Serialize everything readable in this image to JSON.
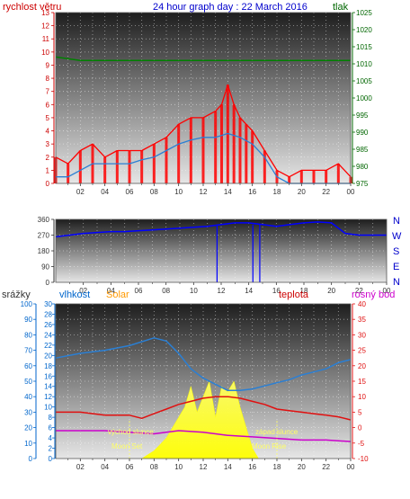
{
  "top_chart": {
    "title": "24 hour graph day : 22 March 2016",
    "left_label": "rychlost větru",
    "right_label": "tlak"
  },
  "mid_chart": {
    "compass": [
      "N",
      "W",
      "S",
      "E",
      "N"
    ]
  },
  "bottom_chart": {
    "labels": {
      "srazky": "srážky",
      "vlhkost": "vlhkost",
      "solar": "Solar",
      "teplota": "teplota",
      "rosny_bod": "rosný bod"
    },
    "annotations": {
      "sunrise": "východ slunce",
      "sunset": "západ slunce",
      "moonset": "Moon Set",
      "moonrise": "Moon Rise"
    }
  },
  "colors": {
    "wind_gust": "#ff0000",
    "wind_avg": "#2a7fd4",
    "pressure": "#008000",
    "direction": "#0000ff",
    "humidity": "#2a7fd4",
    "temperature": "#e01010",
    "dewpoint": "#cc00cc",
    "solar": "#ffff33",
    "left_axis_red": "#cc0000",
    "left_axis_blue": "#0066cc",
    "right_axis_green": "#006600",
    "right_axis_magenta": "#cc00cc"
  },
  "chart_data": [
    {
      "type": "line",
      "title": "24 hour graph day : 22 March 2016",
      "x_ticks": [
        "02",
        "04",
        "06",
        "08",
        "10",
        "12",
        "14",
        "16",
        "18",
        "20",
        "22",
        "00"
      ],
      "ylabel": "rychlost větru",
      "ylim": [
        0,
        13
      ],
      "y_ticks": [
        0,
        1,
        2,
        3,
        4,
        5,
        6,
        7,
        8,
        9,
        10,
        11,
        12,
        13
      ],
      "y2label": "tlak",
      "y2lim": [
        975,
        1025
      ],
      "y2_ticks": [
        975,
        980,
        985,
        990,
        995,
        1000,
        1005,
        1010,
        1015,
        1020,
        1025
      ],
      "grid": true,
      "series": [
        {
          "name": "rychlost větru",
          "role": "gust",
          "x": [
            0,
            1,
            2,
            3,
            4,
            5,
            6,
            7,
            8,
            9,
            10,
            11,
            12,
            13,
            13.5,
            14,
            14.5,
            15,
            15.5,
            16,
            17,
            18,
            19,
            20,
            21,
            22,
            23,
            24
          ],
          "values": [
            2,
            1.5,
            2.5,
            3,
            2,
            2.5,
            2.5,
            2.5,
            3,
            3.5,
            4.5,
            5,
            5,
            5.5,
            6,
            7.5,
            6,
            5,
            4.5,
            4,
            2.5,
            1,
            0.5,
            1,
            1,
            1,
            1.5,
            0.5
          ]
        },
        {
          "role": "average",
          "x": [
            0,
            1,
            2,
            3,
            4,
            5,
            6,
            7,
            8,
            9,
            10,
            11,
            12,
            13,
            14,
            15,
            16,
            17,
            18,
            19,
            20,
            21,
            22,
            23,
            24
          ],
          "values": [
            0.5,
            0.5,
            1,
            1.5,
            1.5,
            1.5,
            1.5,
            1.8,
            2,
            2.5,
            3,
            3.3,
            3.5,
            3.5,
            3.8,
            3.5,
            3,
            2,
            0.5,
            0,
            0,
            0,
            0,
            0,
            0
          ]
        },
        {
          "role": "pressure",
          "x": [
            0,
            2,
            4,
            6,
            8,
            10,
            12,
            14,
            16,
            18,
            20,
            22,
            24
          ],
          "values": [
            1012,
            1011,
            1011,
            1011,
            1011,
            1011,
            1011,
            1011,
            1011,
            1011,
            1011,
            1011,
            1011
          ]
        }
      ]
    },
    {
      "type": "line",
      "x_ticks": [
        "02",
        "04",
        "06",
        "08",
        "10",
        "12",
        "14",
        "16",
        "18",
        "20",
        "22",
        "00"
      ],
      "ylim": [
        0,
        360
      ],
      "y_ticks": [
        0,
        90,
        180,
        270,
        360
      ],
      "grid": true,
      "series": [
        {
          "role": "direction",
          "x": [
            0,
            1,
            2,
            3,
            4,
            5,
            6,
            7,
            8,
            9,
            10,
            11,
            12,
            13,
            14,
            15,
            16,
            17,
            18,
            19,
            20,
            21,
            22,
            23,
            24
          ],
          "values": [
            260,
            270,
            280,
            285,
            290,
            290,
            295,
            300,
            305,
            310,
            315,
            320,
            330,
            340,
            340,
            330,
            320,
            330,
            340,
            345,
            340,
            280,
            270,
            270,
            270
          ]
        }
      ]
    },
    {
      "type": "line",
      "x_ticks": [
        "02",
        "04",
        "06",
        "08",
        "10",
        "12",
        "14",
        "16",
        "18",
        "20",
        "22",
        "00"
      ],
      "ylabel": "srážky",
      "ylim": [
        0,
        30
      ],
      "y_ticks": [
        0,
        2,
        4,
        6,
        8,
        10,
        12,
        14,
        16,
        18,
        20,
        22,
        24,
        26,
        28,
        30
      ],
      "ylim_humidity": [
        0,
        100
      ],
      "y_ticks_humidity": [
        0,
        10,
        20,
        30,
        40,
        50,
        60,
        70,
        80,
        90,
        100
      ],
      "y2label": "teplota",
      "y2lim": [
        -10,
        40
      ],
      "y2_ticks": [
        -10,
        -5,
        0,
        5,
        10,
        15,
        20,
        25,
        30,
        35,
        40
      ],
      "grid": true,
      "series": [
        {
          "name": "vlhkost",
          "x": [
            0,
            2,
            4,
            6,
            8,
            9,
            10,
            11,
            12,
            13,
            14,
            15,
            16,
            17,
            18,
            19,
            20,
            21,
            22,
            23,
            24
          ],
          "values": [
            65,
            68,
            70,
            73,
            78,
            76,
            68,
            58,
            52,
            48,
            44,
            44,
            45,
            47,
            49,
            51,
            54,
            56,
            58,
            62,
            64
          ]
        },
        {
          "name": "teplota",
          "x": [
            0,
            2,
            4,
            6,
            7,
            8,
            9,
            10,
            11,
            12,
            13,
            14,
            15,
            16,
            17,
            18,
            19,
            20,
            21,
            22,
            23,
            24
          ],
          "values": [
            5,
            5,
            4,
            4,
            3,
            4.5,
            6,
            7.5,
            8.5,
            9.5,
            10,
            10,
            9.5,
            8.5,
            7.5,
            6,
            5.5,
            5,
            4.5,
            4,
            3.5,
            2.5
          ]
        },
        {
          "name": "rosný bod",
          "x": [
            0,
            2,
            4,
            6,
            8,
            10,
            12,
            14,
            16,
            18,
            20,
            22,
            24
          ],
          "values": [
            -1,
            -1,
            -1,
            -1.5,
            -2,
            -1,
            -1.5,
            -2.5,
            -3,
            -3.5,
            -4,
            -4,
            -4.5
          ]
        },
        {
          "name": "Solar",
          "x": [
            7,
            8,
            9,
            10,
            10.5,
            11,
            11.5,
            12,
            12.5,
            13,
            13.5,
            14,
            14.5,
            15,
            15.5,
            16,
            16.5
          ],
          "values": [
            0,
            1.5,
            4,
            8,
            10,
            14,
            9,
            12,
            15,
            8,
            14,
            13,
            15,
            10,
            6,
            2,
            0
          ]
        }
      ]
    }
  ]
}
